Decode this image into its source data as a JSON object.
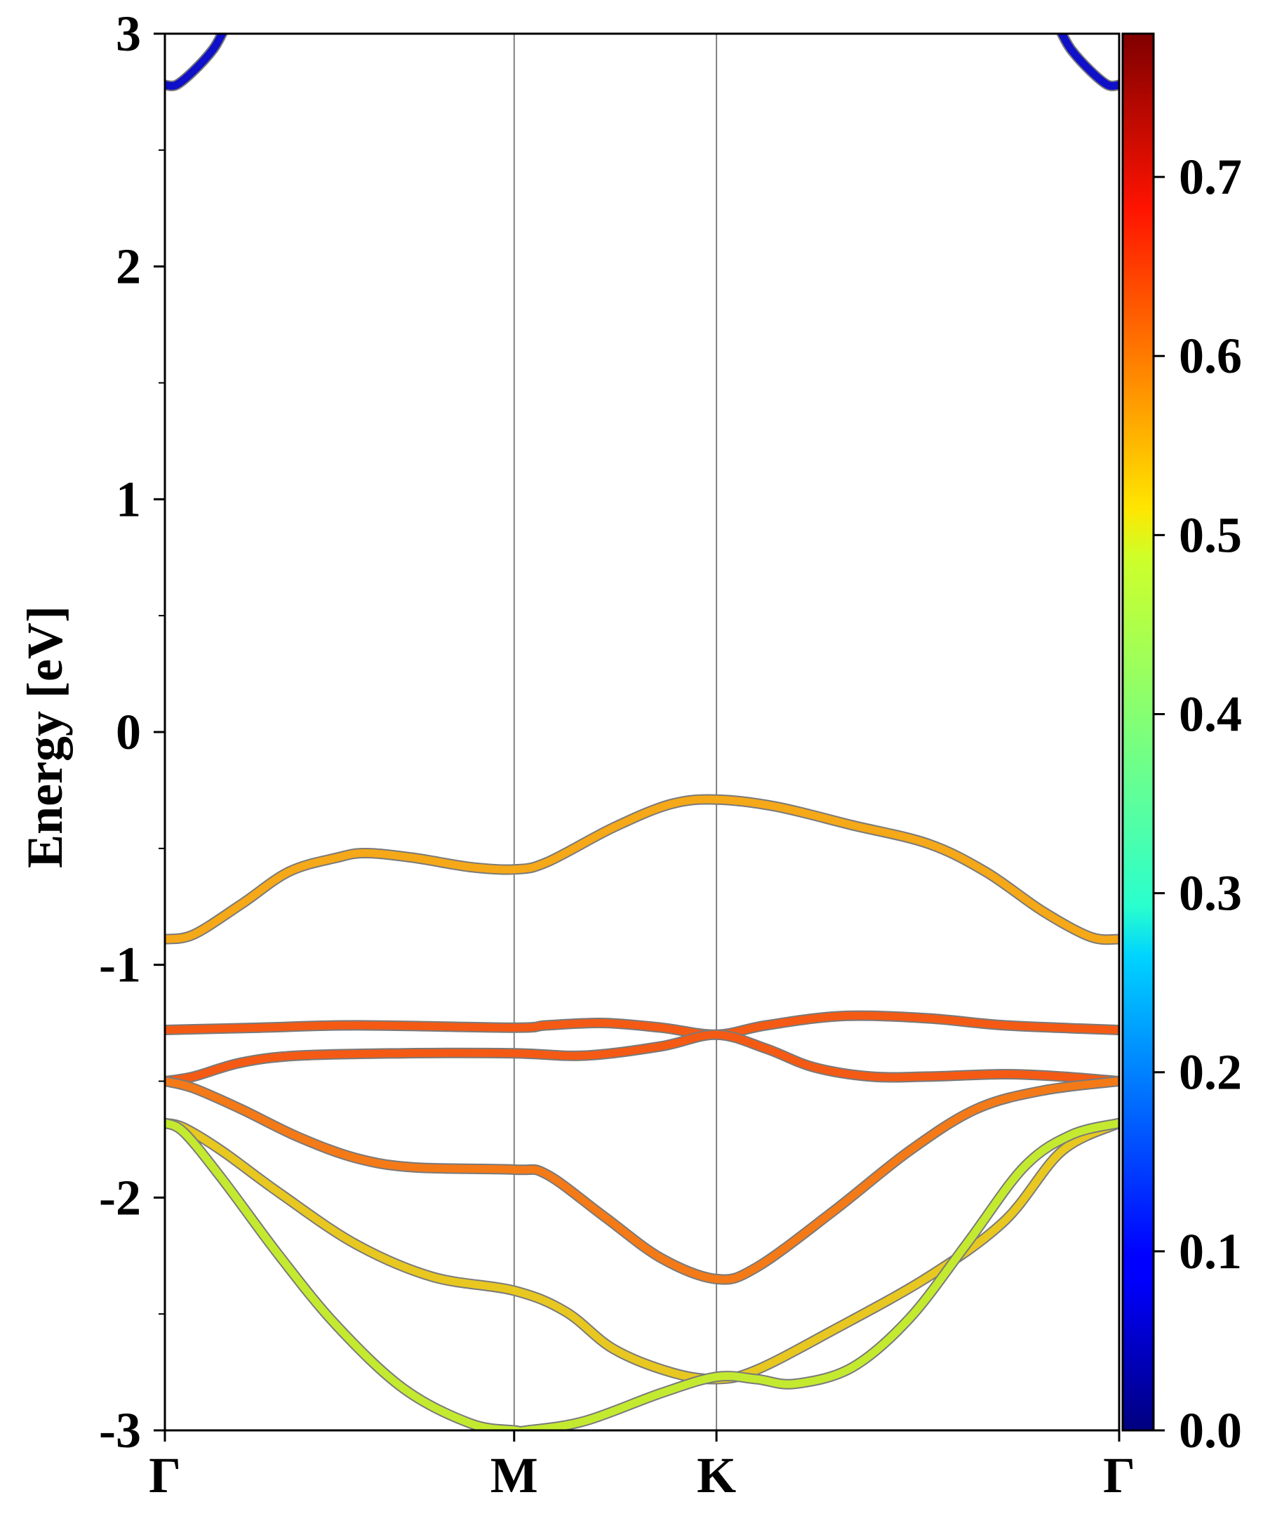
{
  "chart_data": {
    "type": "line",
    "title": "",
    "xlabel": "",
    "ylabel": "Energy [eV]",
    "ylim": [
      -3,
      3
    ],
    "yticks": [
      "3",
      "2",
      "1",
      "0",
      "-1",
      "-2",
      "-3"
    ],
    "ytick_values": [
      3,
      2,
      1,
      0,
      -1,
      -2,
      -3
    ],
    "x_range": [
      0,
      1
    ],
    "kpoints": [
      {
        "label": "Γ",
        "x": 0.0
      },
      {
        "label": "M",
        "x": 0.366
      },
      {
        "label": "K",
        "x": 0.578
      },
      {
        "label": "Γ",
        "x": 1.0
      }
    ],
    "grid": false,
    "series": [
      {
        "color": "#1010c8",
        "weight": 0.05,
        "points": [
          [
            0.0,
            2.78
          ],
          [
            0.012,
            2.78
          ],
          [
            0.03,
            2.84
          ],
          [
            0.05,
            2.93
          ],
          [
            0.06,
            3.0
          ]
        ]
      },
      {
        "color": "#1010c8",
        "weight": 0.05,
        "points": [
          [
            0.94,
            3.0
          ],
          [
            0.95,
            2.93
          ],
          [
            0.97,
            2.84
          ],
          [
            0.988,
            2.78
          ],
          [
            1.0,
            2.78
          ]
        ]
      },
      {
        "color": "#f5a818",
        "weight": 0.58,
        "points": [
          [
            0.0,
            -0.89
          ],
          [
            0.03,
            -0.87
          ],
          [
            0.08,
            -0.74
          ],
          [
            0.13,
            -0.6
          ],
          [
            0.18,
            -0.54
          ],
          [
            0.21,
            -0.52
          ],
          [
            0.26,
            -0.54
          ],
          [
            0.32,
            -0.58
          ],
          [
            0.366,
            -0.59
          ],
          [
            0.4,
            -0.56
          ],
          [
            0.47,
            -0.41
          ],
          [
            0.53,
            -0.31
          ],
          [
            0.578,
            -0.29
          ],
          [
            0.64,
            -0.32
          ],
          [
            0.72,
            -0.4
          ],
          [
            0.8,
            -0.48
          ],
          [
            0.86,
            -0.6
          ],
          [
            0.92,
            -0.77
          ],
          [
            0.97,
            -0.88
          ],
          [
            1.0,
            -0.89
          ]
        ]
      },
      {
        "color": "#f45a14",
        "weight": 0.66,
        "points": [
          [
            0.0,
            -1.28
          ],
          [
            0.1,
            -1.27
          ],
          [
            0.2,
            -1.26
          ],
          [
            0.366,
            -1.27
          ],
          [
            0.4,
            -1.26
          ],
          [
            0.46,
            -1.25
          ],
          [
            0.52,
            -1.27
          ],
          [
            0.578,
            -1.3
          ],
          [
            0.63,
            -1.26
          ],
          [
            0.71,
            -1.22
          ],
          [
            0.8,
            -1.23
          ],
          [
            0.88,
            -1.26
          ],
          [
            1.0,
            -1.28
          ]
        ]
      },
      {
        "color": "#f45a14",
        "weight": 0.66,
        "points": [
          [
            0.0,
            -1.5
          ],
          [
            0.03,
            -1.48
          ],
          [
            0.08,
            -1.42
          ],
          [
            0.14,
            -1.39
          ],
          [
            0.25,
            -1.38
          ],
          [
            0.366,
            -1.38
          ],
          [
            0.44,
            -1.39
          ],
          [
            0.52,
            -1.35
          ],
          [
            0.578,
            -1.3
          ],
          [
            0.63,
            -1.36
          ],
          [
            0.68,
            -1.44
          ],
          [
            0.74,
            -1.48
          ],
          [
            0.8,
            -1.48
          ],
          [
            0.88,
            -1.47
          ],
          [
            0.94,
            -1.48
          ],
          [
            1.0,
            -1.5
          ]
        ]
      },
      {
        "color": "#f47a18",
        "weight": 0.62,
        "points": [
          [
            0.0,
            -1.5
          ],
          [
            0.03,
            -1.53
          ],
          [
            0.08,
            -1.62
          ],
          [
            0.14,
            -1.74
          ],
          [
            0.2,
            -1.83
          ],
          [
            0.26,
            -1.87
          ],
          [
            0.366,
            -1.88
          ],
          [
            0.4,
            -1.9
          ],
          [
            0.46,
            -2.08
          ],
          [
            0.52,
            -2.26
          ],
          [
            0.578,
            -2.35
          ],
          [
            0.62,
            -2.3
          ],
          [
            0.7,
            -2.06
          ],
          [
            0.78,
            -1.8
          ],
          [
            0.85,
            -1.62
          ],
          [
            0.92,
            -1.54
          ],
          [
            1.0,
            -1.5
          ]
        ]
      },
      {
        "color": "#e8c820",
        "weight": 0.55,
        "points": [
          [
            0.0,
            -1.68
          ],
          [
            0.02,
            -1.7
          ],
          [
            0.06,
            -1.8
          ],
          [
            0.12,
            -1.98
          ],
          [
            0.2,
            -2.2
          ],
          [
            0.28,
            -2.34
          ],
          [
            0.366,
            -2.4
          ],
          [
            0.42,
            -2.49
          ],
          [
            0.47,
            -2.65
          ],
          [
            0.53,
            -2.75
          ],
          [
            0.578,
            -2.78
          ],
          [
            0.62,
            -2.74
          ],
          [
            0.7,
            -2.57
          ],
          [
            0.8,
            -2.34
          ],
          [
            0.88,
            -2.1
          ],
          [
            0.94,
            -1.8
          ],
          [
            1.0,
            -1.68
          ]
        ]
      },
      {
        "color": "#c4ea30",
        "weight": 0.48,
        "points": [
          [
            0.0,
            -1.68
          ],
          [
            0.02,
            -1.72
          ],
          [
            0.06,
            -1.92
          ],
          [
            0.12,
            -2.25
          ],
          [
            0.18,
            -2.55
          ],
          [
            0.25,
            -2.82
          ],
          [
            0.32,
            -2.97
          ],
          [
            0.366,
            -3.0
          ],
          [
            0.38,
            -3.0
          ],
          [
            0.44,
            -2.96
          ],
          [
            0.52,
            -2.84
          ],
          [
            0.578,
            -2.77
          ],
          [
            0.62,
            -2.78
          ],
          [
            0.66,
            -2.8
          ],
          [
            0.72,
            -2.73
          ],
          [
            0.78,
            -2.52
          ],
          [
            0.84,
            -2.2
          ],
          [
            0.9,
            -1.87
          ],
          [
            0.95,
            -1.73
          ],
          [
            1.0,
            -1.68
          ]
        ]
      }
    ],
    "colorbar": {
      "range": [
        0.0,
        0.78
      ],
      "ticks": [
        "0.7",
        "0.6",
        "0.5",
        "0.4",
        "0.3",
        "0.2",
        "0.1",
        "0.0"
      ],
      "tick_values": [
        0.7,
        0.6,
        0.5,
        0.4,
        0.3,
        0.2,
        0.1,
        0.0
      ],
      "colormap": "jet"
    }
  }
}
